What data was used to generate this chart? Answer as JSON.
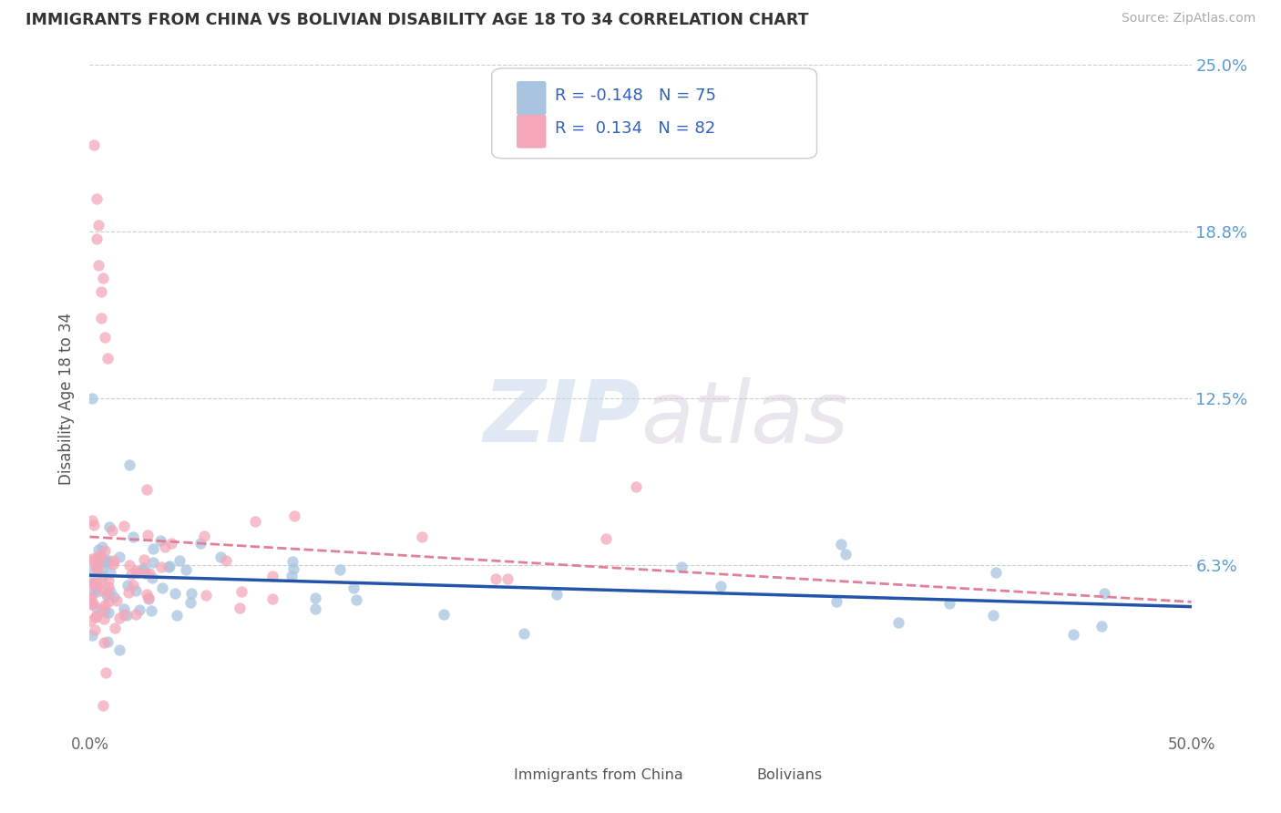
{
  "title": "IMMIGRANTS FROM CHINA VS BOLIVIAN DISABILITY AGE 18 TO 34 CORRELATION CHART",
  "source": "Source: ZipAtlas.com",
  "ylabel": "Disability Age 18 to 34",
  "color_china": "#a8c4e0",
  "color_bolivia": "#f4a7b9",
  "trendline_china_color": "#2255aa",
  "trendline_bolivia_color": "#e08098",
  "background_color": "#ffffff",
  "watermark": "ZIPatlas",
  "xlim": [
    0.0,
    0.5
  ],
  "ylim": [
    0.0,
    0.25
  ],
  "ytick_labels": [
    "",
    "6.3%",
    "12.5%",
    "18.8%",
    "25.0%"
  ],
  "ytick_values": [
    0.0,
    0.0625,
    0.125,
    0.1875,
    0.25
  ],
  "legend_line1": "R = -0.148   N = 75",
  "legend_line2": "R =  0.134   N = 82"
}
